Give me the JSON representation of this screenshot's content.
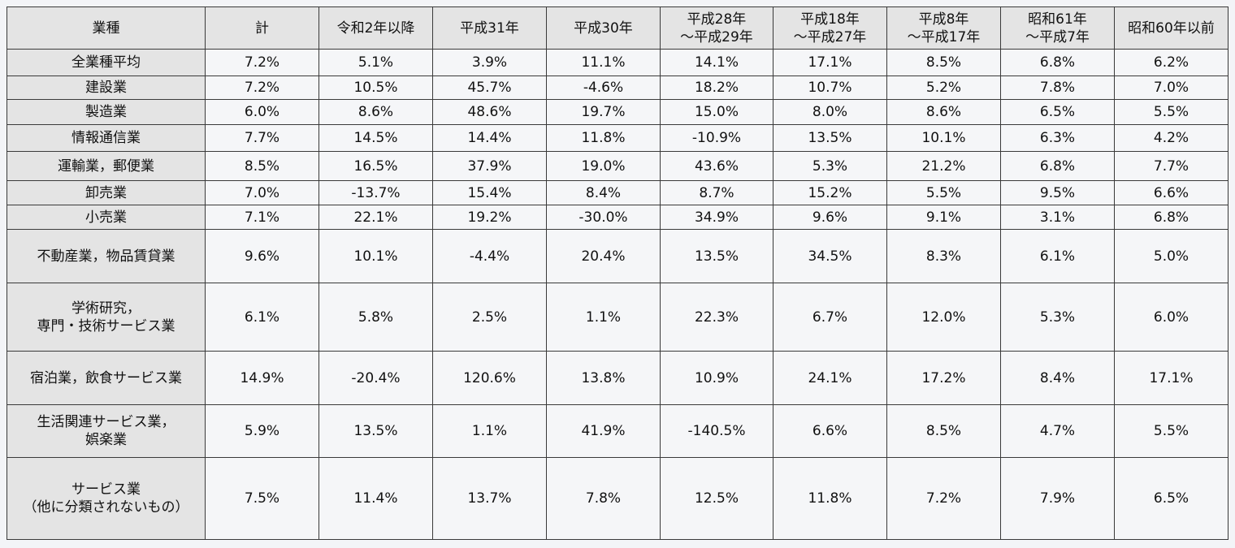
{
  "table": {
    "header": [
      "業種",
      "計",
      "令和2年以降",
      "平成31年",
      "平成30年",
      "平成28年\n～平成29年",
      "平成18年\n～平成27年",
      "平成8年\n～平成17年",
      "昭和61年\n～平成7年",
      "昭和60年以前"
    ],
    "rows": [
      [
        "全業種平均",
        "7.2%",
        "5.1%",
        "3.9%",
        "11.1%",
        "14.1%",
        "17.1%",
        "8.5%",
        "6.8%",
        "6.2%"
      ],
      [
        "建設業",
        "7.2%",
        "10.5%",
        "45.7%",
        "-4.6%",
        "18.2%",
        "10.7%",
        "5.2%",
        "7.8%",
        "7.0%"
      ],
      [
        "製造業",
        "6.0%",
        "8.6%",
        "48.6%",
        "19.7%",
        "15.0%",
        "8.0%",
        "8.6%",
        "6.5%",
        "5.5%"
      ],
      [
        "情報通信業",
        "7.7%",
        "14.5%",
        "14.4%",
        "11.8%",
        "-10.9%",
        "13.5%",
        "10.1%",
        "6.3%",
        "4.2%"
      ],
      [
        "運輸業，郵便業",
        "8.5%",
        "16.5%",
        "37.9%",
        "19.0%",
        "43.6%",
        "5.3%",
        "21.2%",
        "6.8%",
        "7.7%"
      ],
      [
        "卸売業",
        "7.0%",
        "-13.7%",
        "15.4%",
        "8.4%",
        "8.7%",
        "15.2%",
        "5.5%",
        "9.5%",
        "6.6%"
      ],
      [
        "小売業",
        "7.1%",
        "22.1%",
        "19.2%",
        "-30.0%",
        "34.9%",
        "9.6%",
        "9.1%",
        "3.1%",
        "6.8%"
      ],
      [
        "不動産業，物品賃貸業",
        "9.6%",
        "10.1%",
        "-4.4%",
        "20.4%",
        "13.5%",
        "34.5%",
        "8.3%",
        "6.1%",
        "5.0%"
      ],
      [
        "学術研究，\n専門・技術サービス業",
        "6.1%",
        "5.8%",
        "2.5%",
        "1.1%",
        "22.3%",
        "6.7%",
        "12.0%",
        "5.3%",
        "6.0%"
      ],
      [
        "宿泊業，飲食サービス業",
        "14.9%",
        "-20.4%",
        "120.6%",
        "13.8%",
        "10.9%",
        "24.1%",
        "17.2%",
        "8.4%",
        "17.1%"
      ],
      [
        "生活関連サービス業，\n娯楽業",
        "5.9%",
        "13.5%",
        "1.1%",
        "41.9%",
        "-140.5%",
        "6.6%",
        "8.5%",
        "4.7%",
        "5.5%"
      ],
      [
        "サービス業\n（他に分類されないもの）",
        "7.5%",
        "11.4%",
        "13.7%",
        "7.8%",
        "12.5%",
        "11.8%",
        "7.2%",
        "7.9%",
        "6.5%"
      ]
    ]
  }
}
